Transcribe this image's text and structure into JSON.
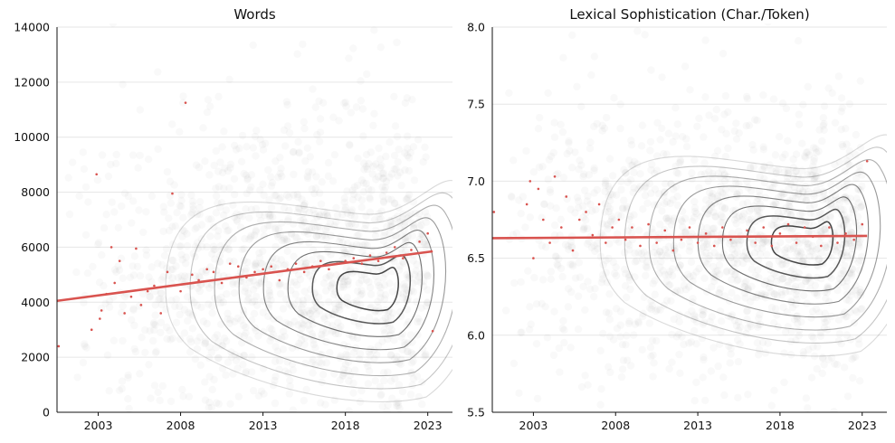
{
  "chart_data": [
    {
      "type": "scatter",
      "title": "Words",
      "xlabel": "",
      "ylabel": "",
      "xlim": [
        2000.5,
        2024.5
      ],
      "ylim": [
        0,
        14000
      ],
      "xticks": [
        2003,
        2008,
        2013,
        2018,
        2023
      ],
      "yticks": [
        0,
        2000,
        4000,
        6000,
        8000,
        10000,
        12000,
        14000
      ],
      "grid": "horizontal",
      "background_cloud": {
        "description_role": "individual documents (faint grey)",
        "x_range": [
          2001,
          2023
        ],
        "y_center": 5000,
        "y_spread": 3000,
        "density_peak": [
          2020,
          4500
        ]
      },
      "trend_line": {
        "x": [
          2000.5,
          2023.3
        ],
        "y": [
          4050,
          5850
        ]
      },
      "mean_points": {
        "x": [
          2000.6,
          2002.6,
          2002.9,
          2003.1,
          2003.2,
          2003.5,
          2003.8,
          2004.0,
          2004.3,
          2004.6,
          2005.0,
          2005.3,
          2005.6,
          2006.0,
          2006.4,
          2006.8,
          2007.2,
          2007.5,
          2008.0,
          2008.3,
          2008.7,
          2009.1,
          2009.6,
          2010.0,
          2010.5,
          2011.0,
          2011.5,
          2012.0,
          2012.5,
          2013.0,
          2013.5,
          2014.0,
          2014.5,
          2015.0,
          2015.5,
          2016.0,
          2016.5,
          2017.0,
          2017.5,
          2018.0,
          2018.5,
          2019.0,
          2019.5,
          2020.0,
          2020.5,
          2021.0,
          2021.5,
          2022.0,
          2022.5,
          2023.0,
          2023.3
        ],
        "y": [
          2400,
          3000,
          8650,
          3400,
          3700,
          4300,
          6000,
          4700,
          5500,
          3600,
          4200,
          5950,
          3900,
          4400,
          4600,
          3600,
          5100,
          7950,
          4400,
          11250,
          5000,
          4800,
          5200,
          5100,
          4700,
          5400,
          5300,
          4900,
          5100,
          5200,
          5300,
          4800,
          5200,
          5400,
          5100,
          5300,
          5500,
          5200,
          5400,
          5500,
          5600,
          5400,
          5700,
          5500,
          5800,
          6000,
          5600,
          5900,
          6200,
          6500,
          2950
        ]
      }
    },
    {
      "type": "scatter",
      "title": "Lexical Sophistication (Char./Token)",
      "xlabel": "",
      "ylabel": "",
      "xlim": [
        2000.5,
        2024.5
      ],
      "ylim": [
        5.5,
        8.0
      ],
      "xticks": [
        2003,
        2008,
        2013,
        2018,
        2023
      ],
      "yticks": [
        5.5,
        6.0,
        6.5,
        7.0,
        7.5,
        8.0
      ],
      "ytick_labels": [
        "5.5",
        "6.0",
        "6.5",
        "7.0",
        "7.5",
        "8.0"
      ],
      "grid": "horizontal",
      "background_cloud": {
        "description_role": "individual documents (faint grey)",
        "x_range": [
          2001,
          2023
        ],
        "y_center": 6.6,
        "y_spread": 0.45,
        "density_peak": [
          2020,
          6.6
        ]
      },
      "trend_line": {
        "x": [
          2000.5,
          2023.3
        ],
        "y": [
          6.63,
          6.645
        ]
      },
      "mean_points": {
        "x": [
          2000.6,
          2002.6,
          2002.8,
          2003.0,
          2003.3,
          2003.6,
          2004.0,
          2004.3,
          2004.7,
          2005.0,
          2005.4,
          2005.8,
          2006.2,
          2006.6,
          2007.0,
          2007.4,
          2007.8,
          2008.2,
          2008.6,
          2009.0,
          2009.5,
          2010.0,
          2010.5,
          2011.0,
          2011.5,
          2012.0,
          2012.5,
          2013.0,
          2013.5,
          2014.0,
          2014.5,
          2015.0,
          2015.5,
          2016.0,
          2016.5,
          2017.0,
          2017.5,
          2018.0,
          2018.5,
          2019.0,
          2019.5,
          2020.0,
          2020.5,
          2021.0,
          2021.5,
          2022.0,
          2022.5,
          2023.0,
          2023.3
        ],
        "y": [
          6.8,
          6.85,
          7.0,
          6.5,
          6.95,
          6.75,
          6.6,
          7.03,
          6.7,
          6.9,
          6.55,
          6.75,
          6.8,
          6.65,
          6.85,
          6.6,
          6.7,
          6.75,
          6.62,
          6.7,
          6.58,
          6.72,
          6.6,
          6.68,
          6.55,
          6.62,
          6.7,
          6.6,
          6.66,
          6.58,
          6.7,
          6.62,
          6.64,
          6.68,
          6.6,
          6.7,
          6.58,
          6.66,
          6.72,
          6.6,
          6.7,
          6.64,
          6.58,
          6.7,
          6.6,
          6.66,
          6.62,
          6.72,
          7.13
        ]
      }
    }
  ]
}
